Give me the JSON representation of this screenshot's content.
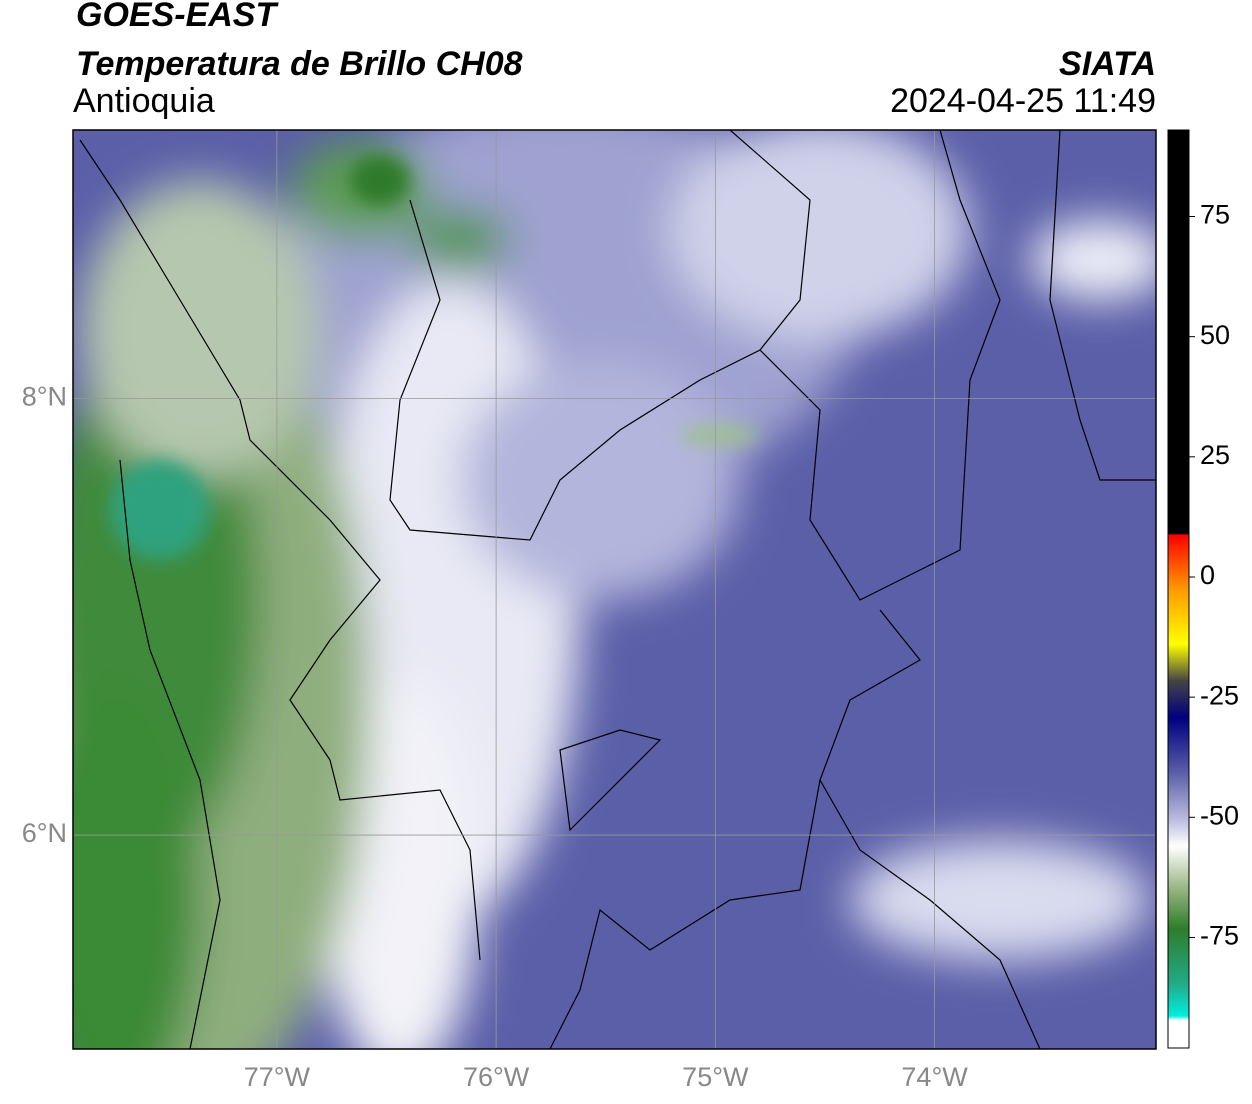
{
  "header": {
    "title": "GOES-EAST",
    "subtitle": "Temperatura de Brillo CH08",
    "region": "Antioquia",
    "source": "SIATA",
    "datetime": "2024-04-25 11:49"
  },
  "map": {
    "lon_range": [
      -77.93,
      -72.99
    ],
    "lat_range": [
      5.02,
      9.23
    ],
    "lat_ticks": [
      {
        "value": 8,
        "label": "8°N"
      },
      {
        "value": 6,
        "label": "6°N"
      }
    ],
    "lon_ticks": [
      {
        "value": -77,
        "label": "77°W"
      },
      {
        "value": -76,
        "label": "76°W"
      },
      {
        "value": -75,
        "label": "75°W"
      },
      {
        "value": -74,
        "label": "74°W"
      }
    ]
  },
  "colorbar": {
    "range": [
      -98,
      93
    ],
    "ticks": [
      75,
      50,
      25,
      0,
      -25,
      -50,
      -75
    ]
  }
}
